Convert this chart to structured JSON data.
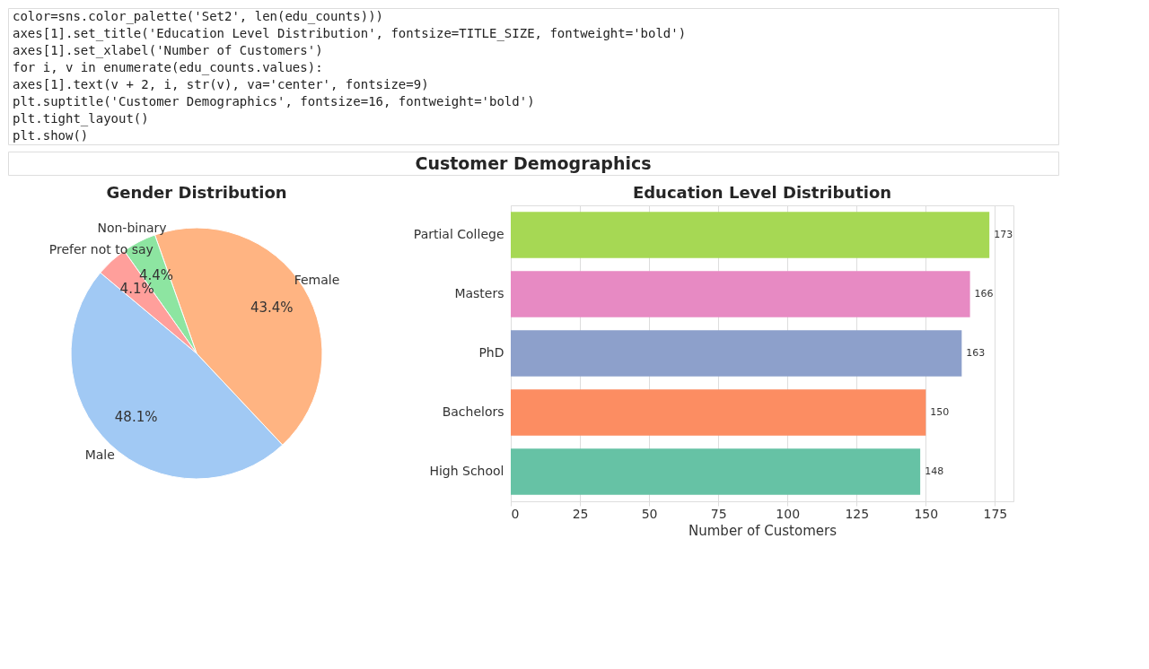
{
  "chart_data": [
    {
      "type": "other",
      "title": "Customer Demographics",
      "annotations": [
        "            color=sns.color_palette('Set2', len(edu_counts)))",
        "axes[1].set_title('Education Level Distribution', fontsize=TITLE_SIZE, fontweight='bold')",
        "axes[1].set_xlabel('Number of Customers')",
        "for i, v in enumerate(edu_counts.values):",
        "    axes[1].text(v + 2, i, str(v), va='center', fontsize=9)",
        "plt.suptitle('Customer Demographics', fontsize=16, fontweight='bold')",
        "plt.tight_layout()",
        "plt.show()"
      ]
    },
    {
      "type": "pie",
      "title": "Gender Distribution",
      "categories": [
        "Male",
        "Female",
        "Non-binary",
        "Prefer not to say"
      ],
      "values": [
        48.1,
        43.4,
        4.4,
        4.1
      ],
      "value_labels": [
        "48.1%",
        "43.4%",
        "4.4%",
        "4.1%"
      ],
      "colors": [
        "#a1c9f4",
        "#ffb482",
        "#8de5a1",
        "#ff9f9b"
      ]
    },
    {
      "type": "bar",
      "orientation": "horizontal",
      "title": "Education Level Distribution",
      "xlabel": "Number of Customers",
      "categories": [
        "Partial College",
        "Masters",
        "PhD",
        "Bachelors",
        "High School"
      ],
      "values": [
        173,
        166,
        163,
        150,
        148
      ],
      "colors": [
        "#a6d854",
        "#e78ac3",
        "#8da0cb",
        "#fc8d62",
        "#66c2a5"
      ],
      "xlim": [
        0,
        181.7
      ],
      "xticks": [
        0,
        25,
        50,
        75,
        100,
        125,
        150,
        175
      ],
      "grid": "x",
      "data_labels": true
    }
  ]
}
